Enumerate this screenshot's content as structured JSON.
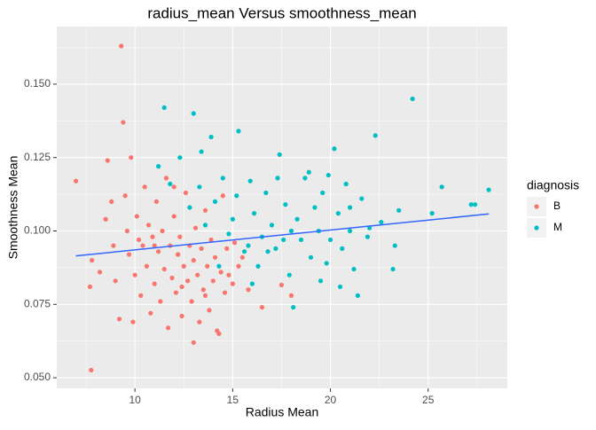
{
  "chart_data": {
    "type": "scatter",
    "title": "radius_mean Versus smoothness_mean",
    "x_label": "Radius Mean",
    "y_label": "Smoothness Mean",
    "legend_title": "diagnosis",
    "legend_position": "right",
    "grid": true,
    "xlim": [
      6.0,
      29.05
    ],
    "ylim": [
      0.0464,
      0.1696
    ],
    "xticks": [
      10,
      15,
      20,
      25
    ],
    "yticks": [
      {
        "value": 0.05,
        "label": "0.050"
      },
      {
        "value": 0.075,
        "label": "0.075"
      },
      {
        "value": 0.1,
        "label": "0.100"
      },
      {
        "value": 0.125,
        "label": "0.125"
      },
      {
        "value": 0.15,
        "label": "0.150"
      }
    ],
    "series": [
      {
        "name": "B",
        "color": "#F8766D",
        "x": [
          6.98,
          7.76,
          7.7,
          7.8,
          8.2,
          8.6,
          8.5,
          8.8,
          8.9,
          9.0,
          9.3,
          9.4,
          9.2,
          9.5,
          9.6,
          9.7,
          9.8,
          9.9,
          10.0,
          10.1,
          10.3,
          10.4,
          10.5,
          10.6,
          10.7,
          10.8,
          10.9,
          11.0,
          11.1,
          11.2,
          11.3,
          11.4,
          11.5,
          11.6,
          11.7,
          11.8,
          11.9,
          12.0,
          12.1,
          12.2,
          12.3,
          12.4,
          12.5,
          12.6,
          12.7,
          12.8,
          12.9,
          13.0,
          13.0,
          13.1,
          13.2,
          13.3,
          13.4,
          13.5,
          13.6,
          13.7,
          13.8,
          13.9,
          14.0,
          14.1,
          14.2,
          14.3,
          14.4,
          14.5,
          14.6,
          14.7,
          14.8,
          15.0,
          15.1,
          15.3,
          15.5,
          15.8,
          16.5,
          17.5,
          18.0,
          12.0,
          11.0,
          10.2,
          13.6,
          12.4
        ],
        "values": [
          0.117,
          0.0526,
          0.081,
          0.09,
          0.086,
          0.124,
          0.104,
          0.11,
          0.095,
          0.083,
          0.163,
          0.137,
          0.07,
          0.112,
          0.1,
          0.092,
          0.125,
          0.069,
          0.085,
          0.105,
          0.078,
          0.095,
          0.115,
          0.088,
          0.102,
          0.072,
          0.098,
          0.082,
          0.11,
          0.093,
          0.076,
          0.1,
          0.087,
          0.118,
          0.067,
          0.095,
          0.084,
          0.105,
          0.079,
          0.092,
          0.098,
          0.071,
          0.088,
          0.113,
          0.083,
          0.095,
          0.076,
          0.062,
          0.09,
          0.101,
          0.085,
          0.069,
          0.094,
          0.08,
          0.107,
          0.088,
          0.073,
          0.097,
          0.083,
          0.091,
          0.066,
          0.065,
          0.086,
          0.112,
          0.079,
          0.094,
          0.085,
          0.082,
          0.096,
          0.088,
          0.091,
          0.08,
          0.074,
          0.0816,
          0.078,
          0.115,
          0.095,
          0.097,
          0.078,
          0.081
        ]
      },
      {
        "name": "M",
        "color": "#00BFC4",
        "x": [
          11.5,
          11.2,
          11.8,
          12.3,
          13.0,
          12.8,
          13.4,
          13.9,
          13.6,
          14.1,
          14.5,
          14.8,
          15.0,
          15.3,
          15.2,
          15.6,
          15.9,
          16.1,
          16.3,
          16.5,
          16.7,
          17.0,
          17.2,
          17.4,
          17.7,
          17.9,
          18.1,
          18.3,
          18.5,
          18.7,
          19.0,
          19.2,
          19.4,
          19.6,
          19.8,
          20.0,
          20.2,
          20.4,
          20.6,
          20.8,
          21.0,
          21.2,
          21.4,
          21.6,
          21.9,
          22.3,
          22.6,
          23.2,
          23.3,
          23.5,
          24.2,
          25.2,
          25.7,
          27.2,
          27.4,
          28.1,
          16.0,
          17.3,
          18.9,
          19.5,
          20.5,
          14.3,
          15.8,
          18.0,
          21.0,
          22.0,
          16.8,
          19.9,
          13.3,
          17.6
        ],
        "values": [
          0.142,
          0.122,
          0.116,
          0.125,
          0.14,
          0.108,
          0.127,
          0.132,
          0.102,
          0.11,
          0.118,
          0.099,
          0.104,
          0.134,
          0.112,
          0.093,
          0.117,
          0.106,
          0.088,
          0.098,
          0.113,
          0.102,
          0.094,
          0.126,
          0.109,
          0.085,
          0.074,
          0.104,
          0.097,
          0.118,
          0.091,
          0.108,
          0.1,
          0.113,
          0.089,
          0.097,
          0.128,
          0.106,
          0.094,
          0.116,
          0.1,
          0.087,
          0.078,
          0.111,
          0.098,
          0.1325,
          0.103,
          0.087,
          0.095,
          0.107,
          0.145,
          0.106,
          0.115,
          0.109,
          0.109,
          0.114,
          0.082,
          0.118,
          0.12,
          0.083,
          0.081,
          0.088,
          0.095,
          0.1,
          0.108,
          0.101,
          0.093,
          0.119,
          0.115,
          0.097
        ]
      }
    ],
    "trend_line": {
      "x": [
        6.98,
        28.11
      ],
      "values": [
        0.0915,
        0.1058
      ],
      "color": "#3366FF"
    }
  }
}
